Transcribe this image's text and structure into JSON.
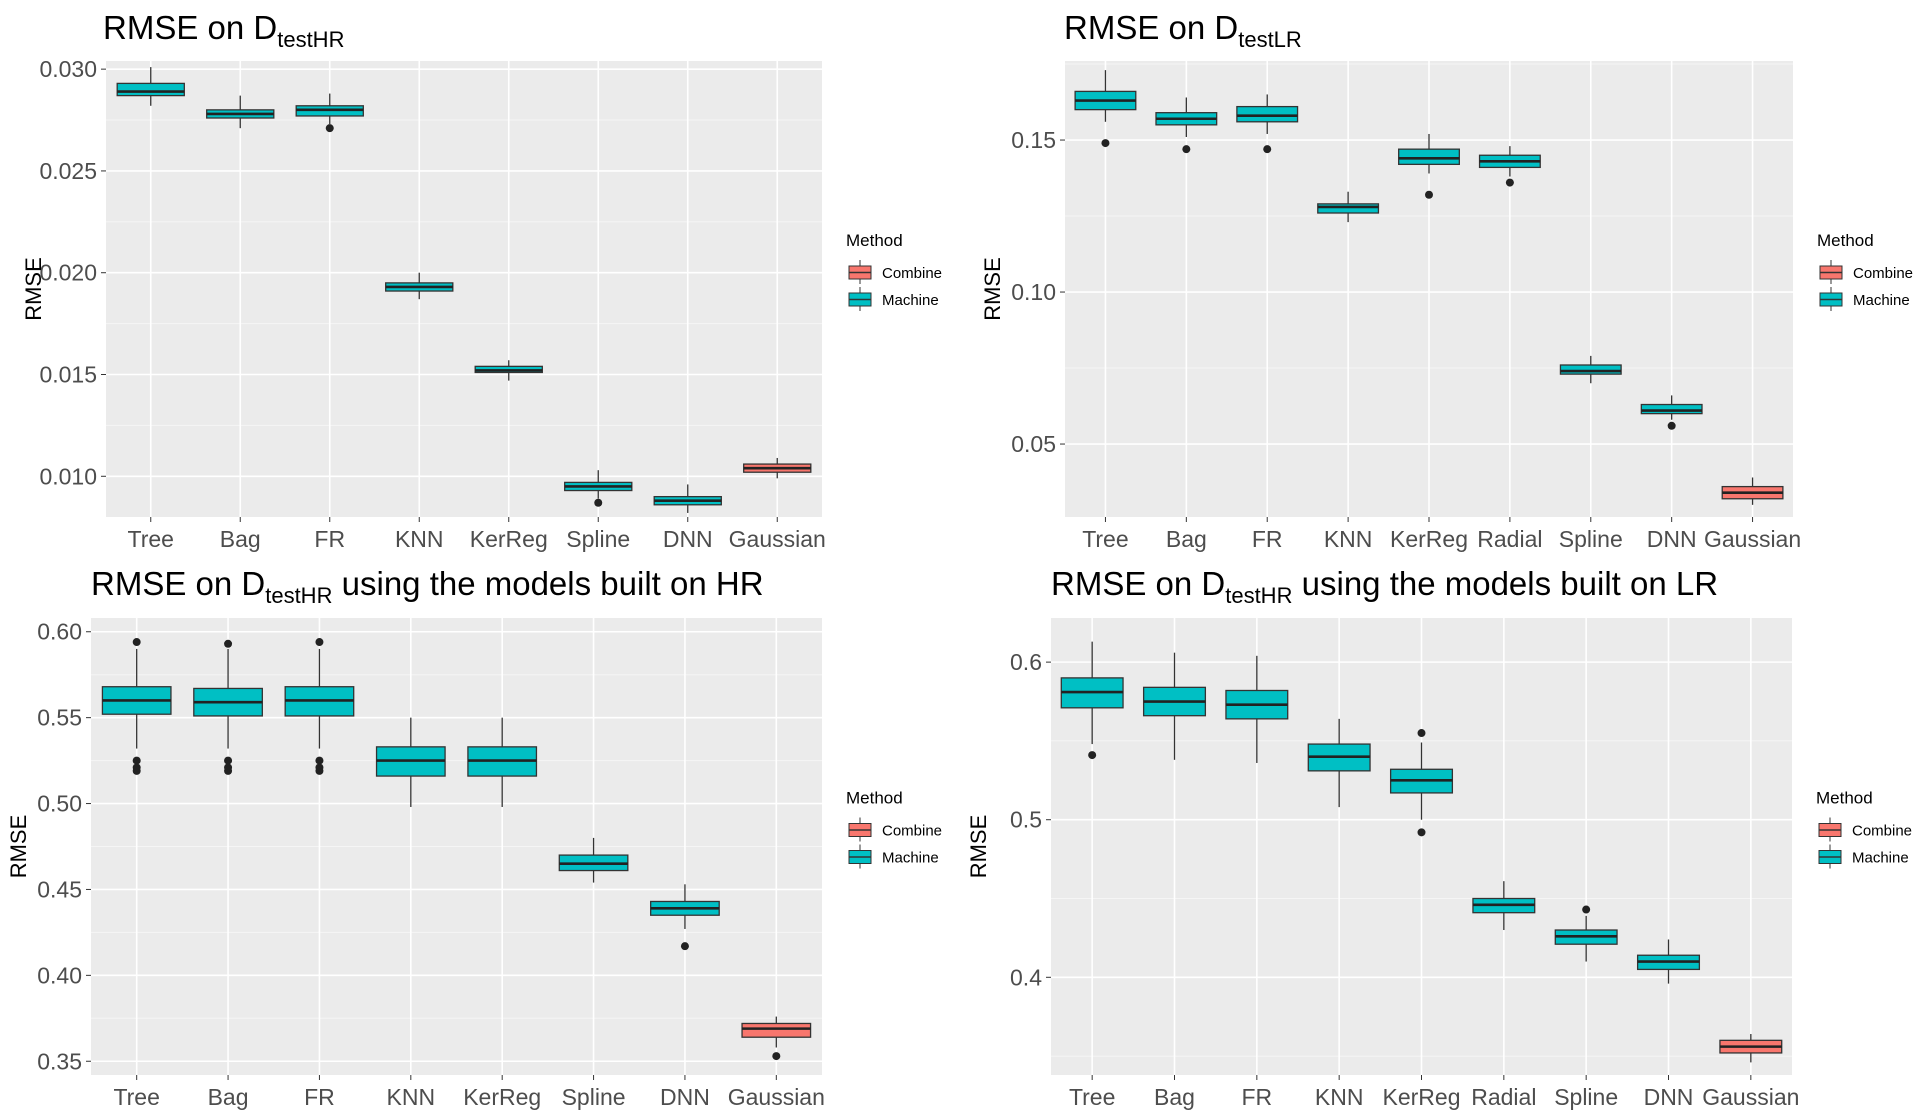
{
  "legend": {
    "title": "Method",
    "items": [
      {
        "label": "Combine",
        "color": "#f8766d"
      },
      {
        "label": "Machine",
        "color": "#00bfc4"
      }
    ]
  },
  "chart_data": [
    {
      "type": "box",
      "title_main": "RMSE on D",
      "title_sub": "testHR",
      "title_rest": "",
      "ylabel": "RMSE",
      "xlabel": "",
      "ylim": [
        0.008,
        0.0304
      ],
      "yticks": [
        0.01,
        0.015,
        0.02,
        0.025,
        0.03
      ],
      "ytick_labels": [
        "0.010",
        "0.015",
        "0.020",
        "0.025",
        "0.030"
      ],
      "legend_position": "right",
      "categories": [
        "Tree",
        "Bag",
        "FR",
        "KNN",
        "KerReg",
        "Spline",
        "DNN",
        "Gaussian"
      ],
      "boxes": [
        {
          "name": "Tree",
          "method": "Machine",
          "min": 0.0282,
          "q1": 0.0287,
          "median": 0.0289,
          "q3": 0.0293,
          "max": 0.0301,
          "outliers": []
        },
        {
          "name": "Bag",
          "method": "Machine",
          "min": 0.0271,
          "q1": 0.0276,
          "median": 0.0278,
          "q3": 0.028,
          "max": 0.0287,
          "outliers": []
        },
        {
          "name": "FR",
          "method": "Machine",
          "min": 0.0273,
          "q1": 0.0277,
          "median": 0.028,
          "q3": 0.0282,
          "max": 0.0288,
          "outliers": [
            0.0271
          ]
        },
        {
          "name": "KNN",
          "method": "Machine",
          "min": 0.0187,
          "q1": 0.0191,
          "median": 0.0193,
          "q3": 0.0195,
          "max": 0.02,
          "outliers": []
        },
        {
          "name": "KerReg",
          "method": "Machine",
          "min": 0.0147,
          "q1": 0.0151,
          "median": 0.0152,
          "q3": 0.0154,
          "max": 0.0157,
          "outliers": []
        },
        {
          "name": "Spline",
          "method": "Machine",
          "min": 0.0089,
          "q1": 0.0093,
          "median": 0.0095,
          "q3": 0.0097,
          "max": 0.0103,
          "outliers": [
            0.0087
          ]
        },
        {
          "name": "DNN",
          "method": "Machine",
          "min": 0.0082,
          "q1": 0.0086,
          "median": 0.0088,
          "q3": 0.009,
          "max": 0.0096,
          "outliers": []
        },
        {
          "name": "Gaussian",
          "method": "Combine",
          "min": 0.0099,
          "q1": 0.0102,
          "median": 0.0104,
          "q3": 0.0106,
          "max": 0.0109,
          "outliers": []
        }
      ]
    },
    {
      "type": "box",
      "title_main": "RMSE on D",
      "title_sub": "testLR",
      "title_rest": "",
      "ylabel": "RMSE",
      "xlabel": "",
      "ylim": [
        0.026,
        0.176
      ],
      "yticks": [
        0.05,
        0.1,
        0.15
      ],
      "ytick_labels": [
        "0.05",
        "0.10",
        "0.15"
      ],
      "legend_position": "right",
      "categories": [
        "Tree",
        "Bag",
        "FR",
        "KNN",
        "KerReg",
        "Radial",
        "Spline",
        "DNN",
        "Gaussian"
      ],
      "boxes": [
        {
          "name": "Tree",
          "method": "Machine",
          "min": 0.156,
          "q1": 0.16,
          "median": 0.163,
          "q3": 0.166,
          "max": 0.173,
          "outliers": [
            0.149
          ]
        },
        {
          "name": "Bag",
          "method": "Machine",
          "min": 0.151,
          "q1": 0.155,
          "median": 0.157,
          "q3": 0.159,
          "max": 0.164,
          "outliers": [
            0.147
          ]
        },
        {
          "name": "FR",
          "method": "Machine",
          "min": 0.152,
          "q1": 0.156,
          "median": 0.158,
          "q3": 0.161,
          "max": 0.165,
          "outliers": [
            0.147
          ]
        },
        {
          "name": "KNN",
          "method": "Machine",
          "min": 0.123,
          "q1": 0.126,
          "median": 0.128,
          "q3": 0.129,
          "max": 0.133,
          "outliers": []
        },
        {
          "name": "KerReg",
          "method": "Machine",
          "min": 0.139,
          "q1": 0.142,
          "median": 0.144,
          "q3": 0.147,
          "max": 0.152,
          "outliers": [
            0.132
          ]
        },
        {
          "name": "Radial",
          "method": "Machine",
          "min": 0.138,
          "q1": 0.141,
          "median": 0.143,
          "q3": 0.145,
          "max": 0.148,
          "outliers": [
            0.136
          ]
        },
        {
          "name": "Spline",
          "method": "Machine",
          "min": 0.07,
          "q1": 0.073,
          "median": 0.074,
          "q3": 0.076,
          "max": 0.079,
          "outliers": []
        },
        {
          "name": "DNN",
          "method": "Machine",
          "min": 0.058,
          "q1": 0.06,
          "median": 0.061,
          "q3": 0.063,
          "max": 0.066,
          "outliers": [
            0.056
          ]
        },
        {
          "name": "Gaussian",
          "method": "Combine",
          "min": 0.03,
          "q1": 0.032,
          "median": 0.034,
          "q3": 0.036,
          "max": 0.039,
          "outliers": []
        }
      ]
    },
    {
      "type": "box",
      "title_main": "RMSE on D",
      "title_sub": "testHR",
      "title_rest": " using the models built on HR",
      "ylabel": "RMSE",
      "xlabel": "",
      "ylim": [
        0.342,
        0.608
      ],
      "yticks": [
        0.35,
        0.4,
        0.45,
        0.5,
        0.55,
        0.6
      ],
      "ytick_labels": [
        "0.35",
        "0.40",
        "0.45",
        "0.50",
        "0.55",
        "0.60"
      ],
      "legend_position": "right",
      "categories": [
        "Tree",
        "Bag",
        "FR",
        "KNN",
        "KerReg",
        "Spline",
        "DNN",
        "Gaussian"
      ],
      "boxes": [
        {
          "name": "Tree",
          "method": "Machine",
          "min": 0.532,
          "q1": 0.552,
          "median": 0.56,
          "q3": 0.568,
          "max": 0.59,
          "outliers": [
            0.594,
            0.525,
            0.521,
            0.519
          ]
        },
        {
          "name": "Bag",
          "method": "Machine",
          "min": 0.532,
          "q1": 0.551,
          "median": 0.559,
          "q3": 0.567,
          "max": 0.59,
          "outliers": [
            0.593,
            0.525,
            0.521,
            0.519
          ]
        },
        {
          "name": "FR",
          "method": "Machine",
          "min": 0.532,
          "q1": 0.551,
          "median": 0.56,
          "q3": 0.568,
          "max": 0.59,
          "outliers": [
            0.594,
            0.525,
            0.521,
            0.519
          ]
        },
        {
          "name": "KNN",
          "method": "Machine",
          "min": 0.498,
          "q1": 0.516,
          "median": 0.525,
          "q3": 0.533,
          "max": 0.55,
          "outliers": []
        },
        {
          "name": "KerReg",
          "method": "Machine",
          "min": 0.498,
          "q1": 0.516,
          "median": 0.525,
          "q3": 0.533,
          "max": 0.55,
          "outliers": []
        },
        {
          "name": "Spline",
          "method": "Machine",
          "min": 0.454,
          "q1": 0.461,
          "median": 0.465,
          "q3": 0.47,
          "max": 0.48,
          "outliers": []
        },
        {
          "name": "DNN",
          "method": "Machine",
          "min": 0.427,
          "q1": 0.435,
          "median": 0.439,
          "q3": 0.443,
          "max": 0.453,
          "outliers": [
            0.417
          ]
        },
        {
          "name": "Gaussian",
          "method": "Combine",
          "min": 0.358,
          "q1": 0.364,
          "median": 0.369,
          "q3": 0.372,
          "max": 0.376,
          "outliers": [
            0.353
          ]
        }
      ]
    },
    {
      "type": "box",
      "title_main": "RMSE on D",
      "title_sub": "testHR",
      "title_rest": " using the models built on LR",
      "ylabel": "RMSE",
      "xlabel": "",
      "ylim": [
        0.338,
        0.628
      ],
      "yticks": [
        0.4,
        0.5,
        0.6
      ],
      "ytick_labels": [
        "0.4",
        "0.5",
        "0.6"
      ],
      "legend_position": "right",
      "categories": [
        "Tree",
        "Bag",
        "FR",
        "KNN",
        "KerReg",
        "Radial",
        "Spline",
        "DNN",
        "Gaussian"
      ],
      "boxes": [
        {
          "name": "Tree",
          "method": "Machine",
          "min": 0.548,
          "q1": 0.571,
          "median": 0.581,
          "q3": 0.59,
          "max": 0.613,
          "outliers": [
            0.541
          ]
        },
        {
          "name": "Bag",
          "method": "Machine",
          "min": 0.538,
          "q1": 0.566,
          "median": 0.575,
          "q3": 0.584,
          "max": 0.606,
          "outliers": []
        },
        {
          "name": "FR",
          "method": "Machine",
          "min": 0.536,
          "q1": 0.564,
          "median": 0.573,
          "q3": 0.582,
          "max": 0.604,
          "outliers": []
        },
        {
          "name": "KNN",
          "method": "Machine",
          "min": 0.508,
          "q1": 0.531,
          "median": 0.54,
          "q3": 0.548,
          "max": 0.564,
          "outliers": []
        },
        {
          "name": "KerReg",
          "method": "Machine",
          "min": 0.5,
          "q1": 0.517,
          "median": 0.525,
          "q3": 0.532,
          "max": 0.549,
          "outliers": [
            0.555,
            0.492
          ]
        },
        {
          "name": "Radial",
          "method": "Machine",
          "min": 0.43,
          "q1": 0.441,
          "median": 0.446,
          "q3": 0.45,
          "max": 0.461,
          "outliers": []
        },
        {
          "name": "Spline",
          "method": "Machine",
          "min": 0.41,
          "q1": 0.421,
          "median": 0.426,
          "q3": 0.43,
          "max": 0.439,
          "outliers": [
            0.443
          ]
        },
        {
          "name": "DNN",
          "method": "Machine",
          "min": 0.396,
          "q1": 0.405,
          "median": 0.41,
          "q3": 0.414,
          "max": 0.424,
          "outliers": []
        },
        {
          "name": "Gaussian",
          "method": "Combine",
          "min": 0.346,
          "q1": 0.352,
          "median": 0.356,
          "q3": 0.36,
          "max": 0.364,
          "outliers": []
        }
      ]
    }
  ]
}
